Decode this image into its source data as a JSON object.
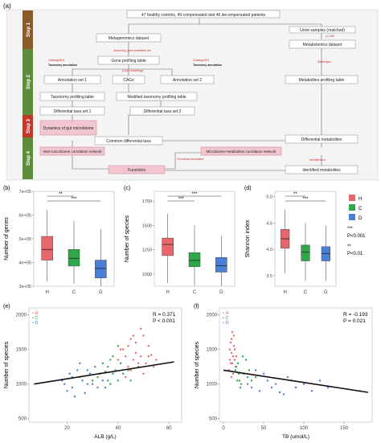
{
  "panel_a": {
    "label": "(a)",
    "steps": [
      "Step 1",
      "Step 2",
      "Step 3",
      "Step 4"
    ],
    "colors": {
      "step1": "#8B5A2B",
      "step2": "#5E8C3A",
      "step3": "#C0392B",
      "step4": "#5E8C3A",
      "pink": "#F2C6CF",
      "pinkBorder": "#C77C8E",
      "box": "#ffffff",
      "boxBorder": "#777777",
      "red": "#D12B2B"
    },
    "boxes": {
      "top": "47 healthy controls, 49 compensated and 46 decompensated patients",
      "metagenomics": "Metagenomics dataset",
      "urine": "Urine samples (matched)",
      "metabolomics": "Metabolomics dataset",
      "gene_profiling": "Gene profiling table",
      "annotation1": "Annotation set 1",
      "cags": "CAGs",
      "annotation2": "Annotation set 2",
      "metabolites_profiling": "Metabolites profiling table",
      "taxonomy_profiling": "Taxonomy profiling table",
      "modified_taxonomy": "Modified taxonomy profiling table",
      "diff_taxa1": "Differential taxa set 1",
      "diff_taxa2": "Differential taxa set 2",
      "dynamics": "Dynamics of gut microbiome",
      "common_diff": "Common differential taxa",
      "diff_metabolites": "Differential metabolites",
      "inter_microbiome": "Inter-microbiome correlation network",
      "microbiome_metabolites": "Microbiome-metabolites correlation network",
      "functions": "Functions",
      "identified": "Identified metabolites"
    },
    "annotations": {
      "assembly": "Assembly, gene prediction etc.",
      "cag_clustering": "(CAG clustering)",
      "catalog1": "CatalogDB 8",
      "tax_annotation": "Taxonomy annotation",
      "catalog2": "CatalogDB 8",
      "tax_annotation2": "Taxonomy annotation",
      "lcms": "LC-MS",
      "markerlynx": "Markerlynx",
      "functional": "Functional annotation",
      "identification": "Identification"
    }
  },
  "chart_data": [
    {
      "type": "box",
      "panel": "(b)",
      "ylabel": "Number of genes",
      "categories": [
        "H",
        "C",
        "D"
      ],
      "yticks": [
        "3e+05",
        "4e+05",
        "5e+05",
        "6e+05",
        "7e+05"
      ],
      "ylim": [
        300000,
        700000
      ],
      "boxes": [
        {
          "q1": 410000,
          "median": 455000,
          "q3": 510000,
          "low": 320000,
          "high": 620000,
          "color": "#E8676B"
        },
        {
          "q1": 385000,
          "median": 418000,
          "q3": 455000,
          "low": 310000,
          "high": 575000,
          "color": "#2EA84A"
        },
        {
          "q1": 335000,
          "median": 375000,
          "q3": 410000,
          "low": 300000,
          "high": 540000,
          "color": "#4A7FD8"
        }
      ],
      "significance": [
        {
          "from": 0,
          "to": 1,
          "label": "**"
        },
        {
          "from": 0,
          "to": 2,
          "label": "***"
        }
      ]
    },
    {
      "type": "box",
      "panel": "(c)",
      "ylabel": "Number of species",
      "categories": [
        "H",
        "C",
        "D"
      ],
      "yticks": [
        "1000",
        "1250",
        "1500",
        "1750"
      ],
      "ylim": [
        875,
        1850
      ],
      "boxes": [
        {
          "q1": 1190,
          "median": 1305,
          "q3": 1370,
          "low": 910,
          "high": 1620,
          "color": "#E8676B"
        },
        {
          "q1": 1075,
          "median": 1140,
          "q3": 1220,
          "low": 880,
          "high": 1500,
          "color": "#2EA84A"
        },
        {
          "q1": 1020,
          "median": 1085,
          "q3": 1170,
          "low": 880,
          "high": 1390,
          "color": "#4A7FD8"
        }
      ],
      "significance": [
        {
          "from": 0,
          "to": 2,
          "label": "***"
        },
        {
          "from": 0,
          "to": 1,
          "label": "***"
        }
      ]
    },
    {
      "type": "box",
      "panel": "(d)",
      "ylabel": "Shannon index",
      "categories": [
        "H",
        "C",
        "D"
      ],
      "yticks": [
        "3.5",
        "4.0",
        "4.5",
        "5.0"
      ],
      "ylim": [
        3.3,
        5.1
      ],
      "boxes": [
        {
          "q1": 4.02,
          "median": 4.2,
          "q3": 4.38,
          "low": 3.55,
          "high": 4.75,
          "color": "#E8676B"
        },
        {
          "q1": 3.78,
          "median": 3.95,
          "q3": 4.08,
          "low": 3.4,
          "high": 4.5,
          "color": "#2EA84A"
        },
        {
          "q1": 3.78,
          "median": 3.92,
          "q3": 4.05,
          "low": 3.4,
          "high": 4.45,
          "color": "#4A7FD8"
        }
      ],
      "significance": [
        {
          "from": 0,
          "to": 1,
          "label": "**"
        },
        {
          "from": 0,
          "to": 2,
          "label": "***"
        }
      ],
      "legend": [
        {
          "label": "H",
          "color": "#E8676B"
        },
        {
          "label": "C",
          "color": "#2EA84A"
        },
        {
          "label": "D",
          "color": "#4A7FD8"
        }
      ],
      "sig_legend": [
        {
          "symbol": "***",
          "text": "P<0.001"
        },
        {
          "symbol": "**",
          "text": "P<0.01"
        }
      ]
    },
    {
      "type": "scatter",
      "panel": "(e)",
      "xlabel": "ALB (g/L)",
      "ylabel": "Number of species",
      "xlim": [
        5,
        65
      ],
      "ylim": [
        450,
        2100
      ],
      "xticks": [
        20,
        40,
        60
      ],
      "yticks": [
        500,
        1000,
        1500,
        2000
      ],
      "stats": [
        "R = 0.371",
        "P < 0.001"
      ],
      "fit": {
        "x0": 7,
        "y0": 1000,
        "x1": 62,
        "y1": 1320
      },
      "legend": [
        {
          "label": "H",
          "color": "#E8676B"
        },
        {
          "label": "C",
          "color": "#2EA84A"
        },
        {
          "label": "D",
          "color": "#4A7FD8"
        }
      ],
      "series": [
        {
          "color": "#E8676B",
          "points": [
            [
              42,
              1500
            ],
            [
              45,
              1650
            ],
            [
              47,
              1450
            ],
            [
              50,
              1700
            ],
            [
              48,
              1300
            ],
            [
              44,
              1250
            ],
            [
              52,
              1550
            ],
            [
              46,
              1350
            ],
            [
              49,
              1800
            ],
            [
              43,
              1400
            ],
            [
              51,
              1300
            ],
            [
              53,
              1420
            ],
            [
              40,
              1350
            ],
            [
              47,
              1600
            ],
            [
              45,
              1200
            ],
            [
              49,
              1400
            ],
            [
              54,
              1250
            ],
            [
              41,
              1500
            ],
            [
              46,
              1700
            ],
            [
              50,
              1150
            ],
            [
              55,
              1350
            ],
            [
              43,
              1100
            ],
            [
              48,
              1250
            ],
            [
              44,
              1550
            ],
            [
              52,
              1400
            ]
          ]
        },
        {
          "color": "#2EA84A",
          "points": [
            [
              32,
              1100
            ],
            [
              36,
              1250
            ],
            [
              38,
              1150
            ],
            [
              40,
              1050
            ],
            [
              34,
              1300
            ],
            [
              37,
              1000
            ],
            [
              39,
              1200
            ],
            [
              42,
              1150
            ],
            [
              35,
              950
            ],
            [
              30,
              1050
            ],
            [
              41,
              1300
            ],
            [
              33,
              1150
            ],
            [
              38,
              1400
            ],
            [
              36,
              1050
            ],
            [
              44,
              1200
            ],
            [
              31,
              1250
            ],
            [
              40,
              1550
            ],
            [
              37,
              1350
            ],
            [
              45,
              1050
            ],
            [
              35,
              1180
            ]
          ]
        },
        {
          "color": "#4A7FD8",
          "points": [
            [
              18,
              1050
            ],
            [
              22,
              950
            ],
            [
              25,
              1100
            ],
            [
              20,
              900
            ],
            [
              28,
              1000
            ],
            [
              24,
              1200
            ],
            [
              27,
              870
            ],
            [
              21,
              1150
            ],
            [
              30,
              1000
            ],
            [
              26,
              1050
            ],
            [
              23,
              820
            ],
            [
              29,
              1150
            ],
            [
              19,
              1000
            ],
            [
              32,
              950
            ],
            [
              25,
              1300
            ],
            [
              34,
              1050
            ],
            [
              28,
              1200
            ],
            [
              22,
              1100
            ]
          ]
        }
      ]
    },
    {
      "type": "scatter",
      "panel": "(f)",
      "xlabel": "TB (umol/L)",
      "ylabel": "Number of species",
      "xlim": [
        -5,
        185
      ],
      "ylim": [
        450,
        2100
      ],
      "xticks": [
        0,
        50,
        100,
        150
      ],
      "yticks": [
        500,
        1000,
        1500,
        2000
      ],
      "stats": [
        "R = -0.193",
        "P = 0.021"
      ],
      "fit": {
        "x0": 0,
        "y0": 1200,
        "x1": 180,
        "y1": 880
      },
      "legend": [
        {
          "label": "H",
          "color": "#E8676B"
        },
        {
          "label": "C",
          "color": "#2EA84A"
        },
        {
          "label": "D",
          "color": "#4A7FD8"
        }
      ],
      "series": [
        {
          "color": "#E8676B",
          "points": [
            [
              8,
              1500
            ],
            [
              10,
              1650
            ],
            [
              12,
              1400
            ],
            [
              9,
              1300
            ],
            [
              11,
              1750
            ],
            [
              14,
              1350
            ],
            [
              7,
              1200
            ],
            [
              13,
              1550
            ],
            [
              10,
              1450
            ],
            [
              15,
              1250
            ],
            [
              9,
              1600
            ],
            [
              12,
              1150
            ],
            [
              16,
              1400
            ],
            [
              11,
              1300
            ],
            [
              8,
              1350
            ],
            [
              13,
              1700
            ],
            [
              10,
              1100
            ],
            [
              14,
              1500
            ]
          ]
        },
        {
          "color": "#2EA84A",
          "points": [
            [
              15,
              1200
            ],
            [
              20,
              1050
            ],
            [
              18,
              1300
            ],
            [
              25,
              1150
            ],
            [
              22,
              1000
            ],
            [
              30,
              1100
            ],
            [
              16,
              1250
            ],
            [
              28,
              1350
            ],
            [
              35,
              1050
            ],
            [
              19,
              1150
            ],
            [
              24,
              1400
            ],
            [
              40,
              1100
            ],
            [
              21,
              950
            ],
            [
              17,
              1050
            ],
            [
              32,
              1200
            ]
          ]
        },
        {
          "color": "#4A7FD8",
          "points": [
            [
              30,
              1000
            ],
            [
              45,
              900
            ],
            [
              55,
              1050
            ],
            [
              60,
              950
            ],
            [
              70,
              880
            ],
            [
              80,
              1100
            ],
            [
              50,
              1150
            ],
            [
              65,
              1000
            ],
            [
              90,
              950
            ],
            [
              110,
              900
            ],
            [
              40,
              1200
            ],
            [
              85,
              1050
            ],
            [
              130,
              950
            ],
            [
              170,
              900
            ],
            [
              100,
              1000
            ],
            [
              75,
              850
            ],
            [
              120,
              1050
            ],
            [
              35,
              950
            ]
          ]
        }
      ]
    }
  ]
}
